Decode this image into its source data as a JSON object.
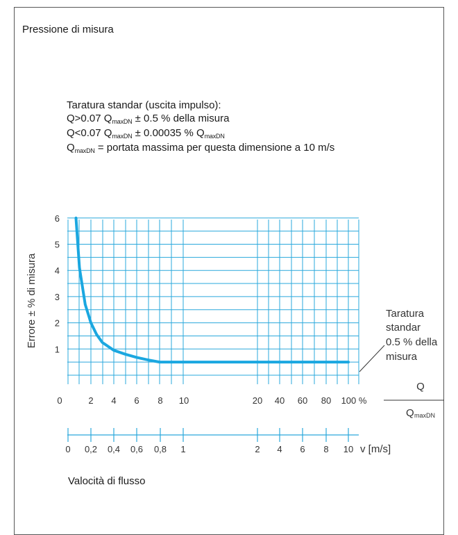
{
  "page_title": "Pressione di misura",
  "calibration": {
    "heading": "Taratura standar (uscita impulso):",
    "line1_prefix": "Q>0.07 Q",
    "line1_sub": "maxDN",
    "line1_suffix": "± 0.5 % della misura",
    "line2_prefix": "Q<0.07 Q",
    "line2_sub": "maxDN",
    "line2_mid": "± 0.00035 % Q",
    "line2_sub2": "maxDN",
    "line3_prefix": "Q",
    "line3_sub": "maxDN",
    "line3_suffix": " = portata massima per questa dimensione a 10 m/s"
  },
  "footer_label": "Valocità di flusso",
  "chart_data": {
    "type": "line",
    "ylabel": "Errore ± % di misura",
    "y_ticks": [
      "1",
      "2",
      "3",
      "4",
      "5",
      "6"
    ],
    "ylim": [
      0,
      6
    ],
    "x_percent_ticks": [
      "0",
      "2",
      "4",
      "6",
      "8",
      "10",
      "20",
      "40",
      "60",
      "80",
      "100 %"
    ],
    "x_velocity_ticks": [
      "0",
      "0,2",
      "0,4",
      "0,6",
      "0,8",
      "1",
      "2",
      "4",
      "6",
      "8",
      "10"
    ],
    "x_velocity_unit": "v [m/s]",
    "ratio_label": {
      "numerator": "Q",
      "denominator": "Q",
      "denominator_sub": "maxDN"
    },
    "annotation": [
      "Taratura",
      "standar",
      "0.5 % della",
      "misura"
    ],
    "grid": true,
    "series": [
      {
        "x_percent": [
          0.7,
          1,
          1.5,
          2,
          2.5,
          3,
          4,
          5,
          6,
          7,
          8,
          10,
          20,
          40,
          60,
          80,
          100
        ],
        "values": [
          6,
          4.1,
          2.7,
          2.0,
          1.55,
          1.25,
          0.95,
          0.8,
          0.68,
          0.58,
          0.5,
          0.5,
          0.5,
          0.5,
          0.5,
          0.5,
          0.5
        ]
      }
    ],
    "colors": {
      "grid": "#2aa8dc",
      "curve": "#1aa7e0",
      "axis": "#333333"
    }
  }
}
